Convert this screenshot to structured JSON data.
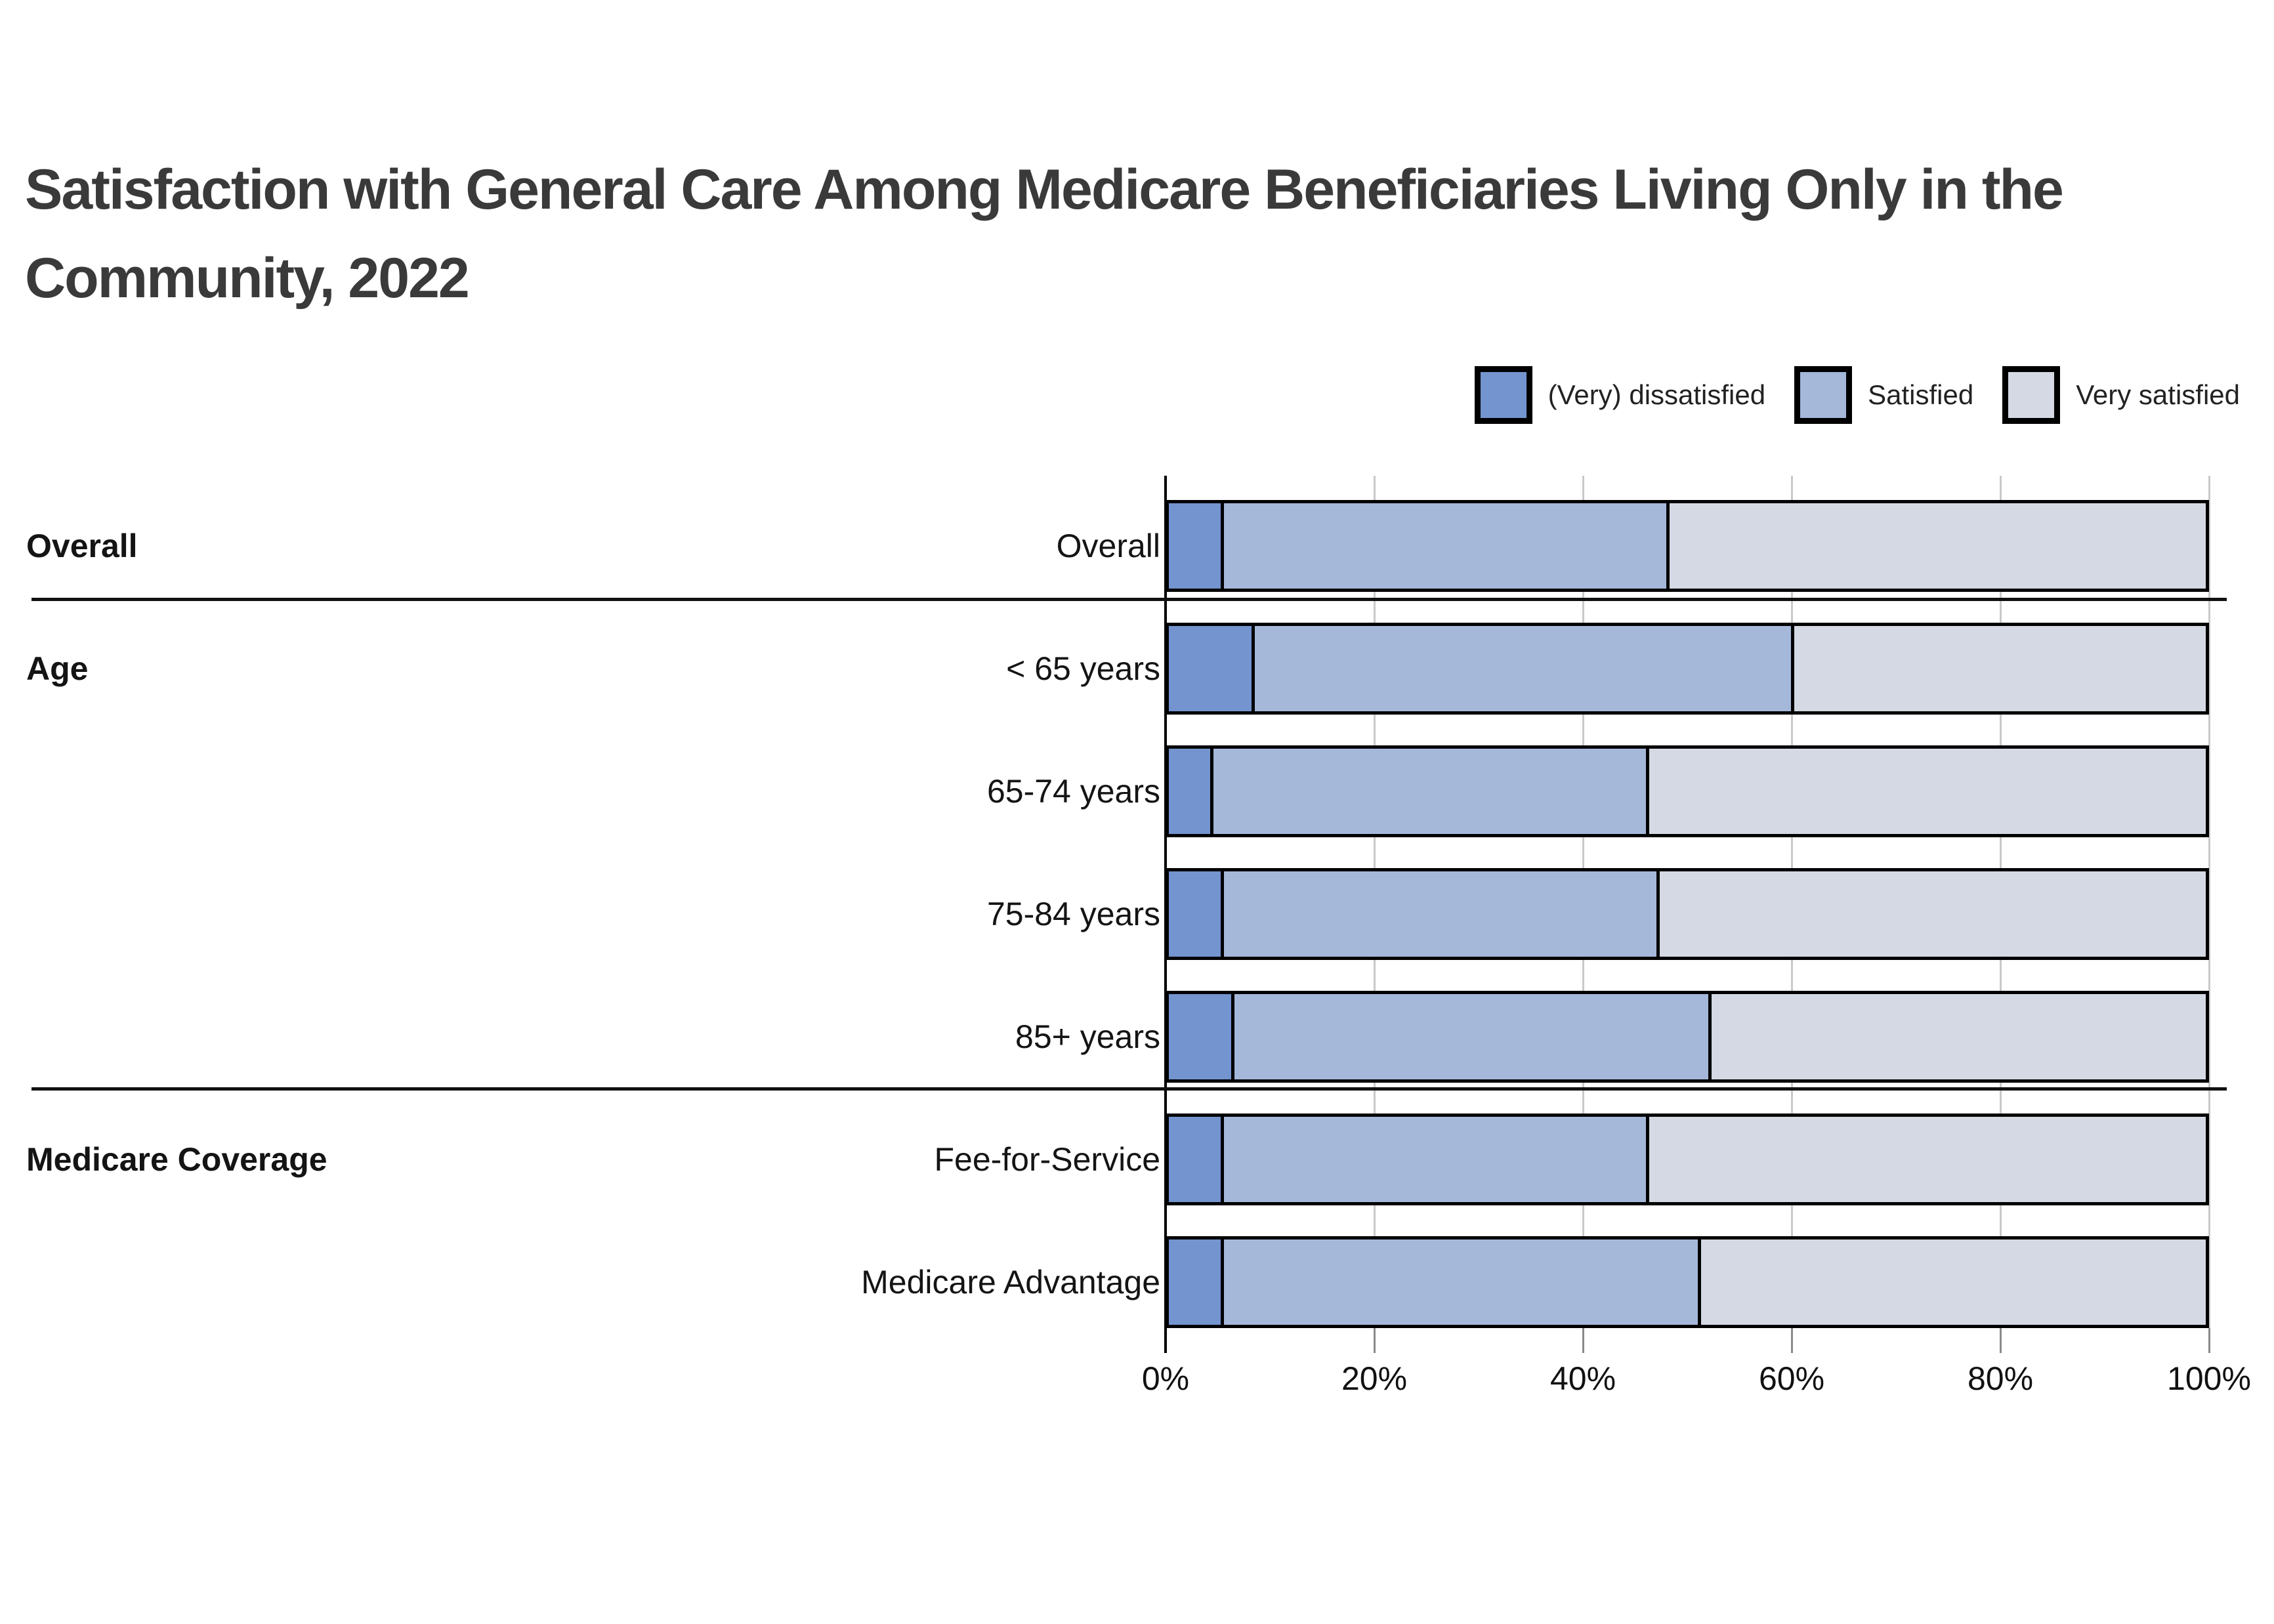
{
  "title": {
    "line1": "Satisfaction with General Care Among Medicare Beneficiaries Living Only in the",
    "line2": "Community, 2022"
  },
  "legend": {
    "items": [
      {
        "label": "(Very) dissatisfied",
        "color": "#7494cf"
      },
      {
        "label": "Satisfied",
        "color": "#a5b8da"
      },
      {
        "label": "Very satisfied",
        "color": "#d4d9e3"
      }
    ]
  },
  "axis": {
    "tick_labels": [
      "0%",
      "20%",
      "40%",
      "60%",
      "80%",
      "100%"
    ],
    "tick_values": [
      0,
      20,
      40,
      60,
      80,
      100
    ]
  },
  "chart_data": {
    "type": "bar",
    "orientation": "horizontal-stacked",
    "title": "Satisfaction with General Care Among Medicare Beneficiaries Living Only in the Community, 2022",
    "categories": [
      "Overall",
      "< 65 years",
      "65-74 years",
      "75-84 years",
      "85+ years",
      "Fee-for-Service",
      "Medicare Advantage"
    ],
    "groups": [
      {
        "label": "Overall",
        "rows": [
          0
        ]
      },
      {
        "label": "Age",
        "rows": [
          1,
          2,
          3,
          4
        ]
      },
      {
        "label": "Medicare Coverage",
        "rows": [
          5,
          6
        ]
      }
    ],
    "series": [
      {
        "name": "(Very) dissatisfied",
        "color": "#7494cf",
        "values": [
          5,
          8,
          4,
          5,
          6,
          5,
          5
        ]
      },
      {
        "name": "Satisfied",
        "color": "#a5b8da",
        "values": [
          43,
          52,
          42,
          42,
          46,
          41,
          46
        ]
      },
      {
        "name": "Very satisfied",
        "color": "#d4d9e3",
        "values": [
          52,
          40,
          54,
          53,
          48,
          54,
          49
        ]
      }
    ],
    "xlim": [
      0,
      100
    ],
    "xlabel": "",
    "ylabel": "",
    "grid": true,
    "legend_position": "top-right"
  }
}
